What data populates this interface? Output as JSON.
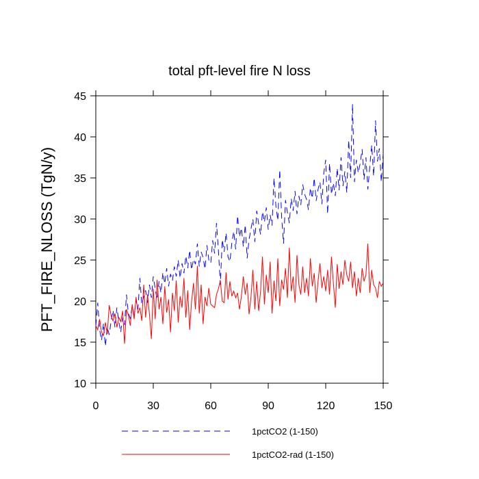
{
  "chart_data": {
    "type": "line",
    "title": "total pft-level fire N loss",
    "y_label": "PFT_FIRE_NLOSS  (TgN/y)",
    "xlim": [
      0,
      150
    ],
    "xticks": [
      0,
      30,
      60,
      90,
      120,
      150
    ],
    "ylim": [
      10,
      45
    ],
    "yticks": [
      10,
      15,
      20,
      25,
      30,
      35,
      40,
      45
    ],
    "x": [
      0,
      1,
      2,
      3,
      4,
      5,
      6,
      7,
      8,
      9,
      10,
      11,
      12,
      13,
      14,
      15,
      16,
      17,
      18,
      19,
      20,
      21,
      22,
      23,
      24,
      25,
      26,
      27,
      28,
      29,
      30,
      31,
      32,
      33,
      34,
      35,
      36,
      37,
      38,
      39,
      40,
      41,
      42,
      43,
      44,
      45,
      46,
      47,
      48,
      49,
      50,
      51,
      52,
      53,
      54,
      55,
      56,
      57,
      58,
      59,
      60,
      61,
      62,
      63,
      64,
      65,
      66,
      67,
      68,
      69,
      70,
      71,
      72,
      73,
      74,
      75,
      76,
      77,
      78,
      79,
      80,
      81,
      82,
      83,
      84,
      85,
      86,
      87,
      88,
      89,
      90,
      91,
      92,
      93,
      94,
      95,
      96,
      97,
      98,
      99,
      100,
      101,
      102,
      103,
      104,
      105,
      106,
      107,
      108,
      109,
      110,
      111,
      112,
      113,
      114,
      115,
      116,
      117,
      118,
      119,
      120,
      121,
      122,
      123,
      124,
      125,
      126,
      127,
      128,
      129,
      130,
      131,
      132,
      133,
      134,
      135,
      136,
      137,
      138,
      139,
      140,
      141,
      142,
      143,
      144,
      145,
      146,
      147,
      148,
      149,
      150
    ],
    "series": [
      {
        "name": "1pctCO2 (1-150)",
        "color": "#0000ff",
        "dash": true,
        "values": [
          17.0,
          19.8,
          16.5,
          15.2,
          17.3,
          14.5,
          16.8,
          15.9,
          17.6,
          18.9,
          16.8,
          19.2,
          17.5,
          16.2,
          18.0,
          17.1,
          20.8,
          18.5,
          17.9,
          19.4,
          18.2,
          20.1,
          19.0,
          22.8,
          19.6,
          20.5,
          21.3,
          19.8,
          22.0,
          20.4,
          23.0,
          21.5,
          20.2,
          22.4,
          21.0,
          23.5,
          22.1,
          24.0,
          21.8,
          23.3,
          22.5,
          24.2,
          23.0,
          25.0,
          22.8,
          24.6,
          23.4,
          25.5,
          24.0,
          26.2,
          23.8,
          25.1,
          24.5,
          27.0,
          24.2,
          26.0,
          25.3,
          23.9,
          26.8,
          25.0,
          24.6,
          27.4,
          25.8,
          29.5,
          26.2,
          22.0,
          27.5,
          26.0,
          28.3,
          25.4,
          24.8,
          27.1,
          28.5,
          26.3,
          30.4,
          27.8,
          28.9,
          26.6,
          29.3,
          25.2,
          27.5,
          28.8,
          30.0,
          27.2,
          31.0,
          29.4,
          28.1,
          30.9,
          29.6,
          31.4,
          28.7,
          30.5,
          29.2,
          35.0,
          31.6,
          29.8,
          36.0,
          30.2,
          27.0,
          32.3,
          30.8,
          29.5,
          32.5,
          31.0,
          33.4,
          30.6,
          32.8,
          31.7,
          34.2,
          33.0,
          32.4,
          31.1,
          33.8,
          32.5,
          35.0,
          32.2,
          33.6,
          34.5,
          31.8,
          35.6,
          37.2,
          30.6,
          36.8,
          33.0,
          34.4,
          32.8,
          36.2,
          33.5,
          37.5,
          34.0,
          35.8,
          33.2,
          39.6,
          35.0,
          44.0,
          34.5,
          37.2,
          35.6,
          36.8,
          38.5,
          34.8,
          37.5,
          33.6,
          36.4,
          39.0,
          35.2,
          42.0,
          37.0,
          38.6,
          34.5,
          38.0
        ]
      },
      {
        "name": "1pctCO2-rad (1-150)",
        "color": "#ff0000",
        "dash": false,
        "values": [
          17.0,
          16.5,
          17.8,
          16.2,
          15.8,
          17.4,
          16.0,
          19.5,
          18.2,
          17.6,
          18.5,
          16.8,
          18.0,
          17.5,
          18.8,
          14.8,
          19.0,
          18.3,
          17.0,
          19.6,
          17.8,
          20.5,
          18.5,
          19.2,
          17.6,
          22.0,
          18.0,
          20.8,
          18.4,
          15.4,
          21.5,
          17.8,
          22.6,
          19.0,
          20.5,
          17.2,
          21.8,
          18.6,
          20.2,
          16.2,
          21.0,
          18.8,
          22.5,
          17.4,
          20.6,
          19.2,
          22.8,
          18.0,
          21.3,
          16.5,
          20.0,
          22.2,
          19.0,
          24.3,
          18.5,
          22.0,
          17.2,
          20.5,
          19.4,
          21.6,
          19.6,
          19.4,
          19.2,
          20.8,
          21.5,
          22.5,
          20.0,
          19.8,
          23.5,
          20.2,
          22.4,
          20.6,
          21.2,
          20.4,
          21.0,
          19.0,
          20.6,
          23.0,
          20.8,
          22.2,
          18.4,
          20.5,
          23.8,
          19.0,
          22.4,
          18.8,
          21.2,
          25.4,
          19.6,
          23.2,
          21.0,
          24.8,
          18.5,
          22.5,
          20.0,
          25.2,
          19.4,
          22.6,
          21.4,
          24.0,
          20.4,
          26.5,
          21.2,
          23.0,
          19.8,
          25.6,
          22.0,
          20.8,
          24.2,
          21.0,
          22.8,
          20.6,
          25.2,
          21.8,
          23.4,
          19.8,
          22.4,
          24.6,
          21.6,
          23.0,
          21.2,
          23.8,
          20.8,
          25.4,
          22.2,
          19.2,
          24.5,
          21.5,
          23.6,
          22.0,
          25.0,
          23.2,
          22.4,
          24.8,
          21.6,
          23.6,
          20.6,
          22.8,
          21.0,
          24.0,
          22.4,
          23.2,
          27.0,
          21.0,
          23.8,
          22.0,
          21.6,
          20.4,
          22.4,
          21.8,
          22.2
        ]
      }
    ]
  }
}
